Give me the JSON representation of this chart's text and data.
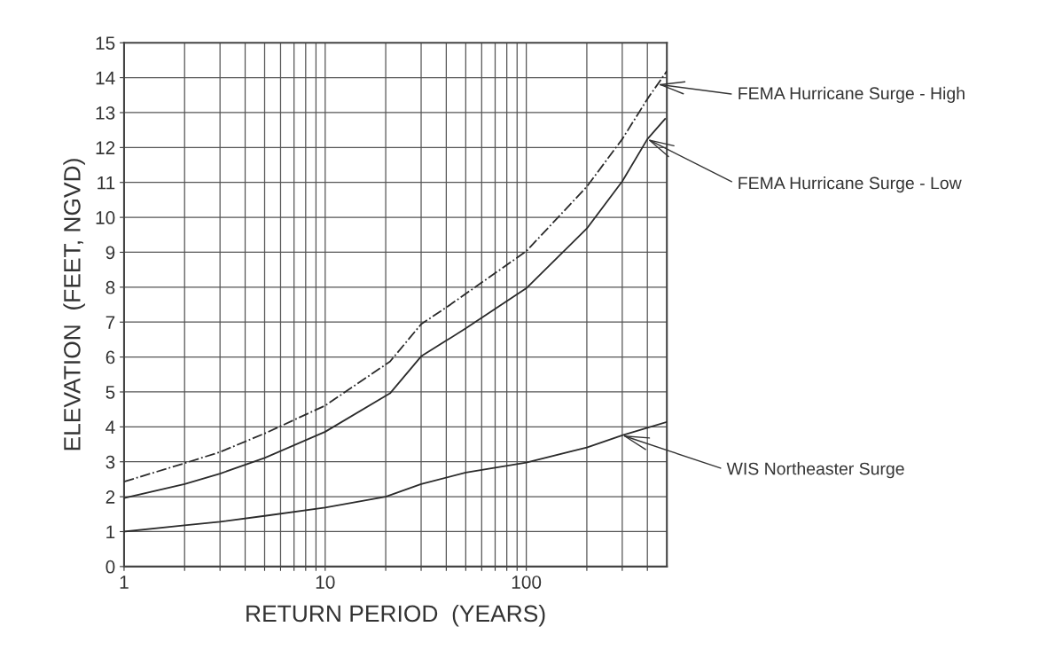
{
  "chart_data": {
    "type": "line",
    "xlabel": "RETURN PERIOD  (YEARS)",
    "ylabel": "ELEVATION  (FEET, NGVD)",
    "log": "x",
    "grid": true,
    "marker": "none",
    "xlim": [
      1,
      500
    ],
    "xticks": [
      1,
      {
        "value": 2,
        "label": null
      },
      {
        "value": 3,
        "label": null
      },
      {
        "value": 4,
        "label": null
      },
      {
        "value": 5,
        "label": null
      },
      {
        "value": 6,
        "label": null
      },
      {
        "value": 7,
        "label": null
      },
      {
        "value": 8,
        "label": null
      },
      {
        "value": 9,
        "label": null
      },
      10,
      {
        "value": 20,
        "label": null
      },
      {
        "value": 30,
        "label": null
      },
      {
        "value": 40,
        "label": null
      },
      {
        "value": 50,
        "label": null
      },
      {
        "value": 60,
        "label": null
      },
      {
        "value": 70,
        "label": null
      },
      {
        "value": 80,
        "label": null
      },
      {
        "value": 90,
        "label": null
      },
      100,
      {
        "value": 200,
        "label": null
      },
      {
        "value": 300,
        "label": null
      },
      {
        "value": 400,
        "label": null
      }
    ],
    "ylim": [
      0,
      15
    ],
    "yticks": [
      0,
      1,
      2,
      3,
      4,
      5,
      6,
      7,
      8,
      9,
      10,
      11,
      12,
      13,
      14,
      15
    ],
    "series": [
      {
        "color": "#2b2b2b",
        "line_style": "dashdot",
        "x": [
          1,
          2,
          3,
          5,
          10,
          21,
          30,
          40,
          100,
          200,
          300,
          400,
          500
        ],
        "values": [
          2.43,
          2.96,
          3.28,
          3.81,
          4.61,
          5.87,
          6.94,
          7.42,
          9.03,
          10.88,
          12.24,
          13.39,
          14.19
        ]
      },
      {
        "color": "#2b2b2b",
        "line_style": "solid",
        "x": [
          1,
          2,
          3,
          5,
          10,
          21,
          30,
          40,
          50,
          100,
          200,
          300,
          400,
          490
        ],
        "values": [
          1.96,
          2.36,
          2.66,
          3.11,
          3.86,
          4.96,
          6.02,
          6.47,
          6.82,
          7.97,
          9.68,
          11.03,
          12.24,
          12.82
        ]
      },
      {
        "color": "#2b2b2b",
        "line_style": "solid",
        "x": [
          1,
          2,
          3,
          5,
          10,
          20,
          30,
          50,
          100,
          200,
          300,
          500
        ],
        "values": [
          1.0,
          1.18,
          1.28,
          1.45,
          1.69,
          2.0,
          2.36,
          2.69,
          2.98,
          3.41,
          3.76,
          4.14
        ]
      }
    ],
    "annotations": [
      {
        "text": "FEMA Hurricane Surge - High",
        "x": 450,
        "y": 13.81
      },
      {
        "text": "FEMA Hurricane Surge - Low",
        "x": 400,
        "y": 12.24
      },
      {
        "text": "WIS Northeaster Surge",
        "x": 300,
        "y": 3.76
      }
    ]
  }
}
